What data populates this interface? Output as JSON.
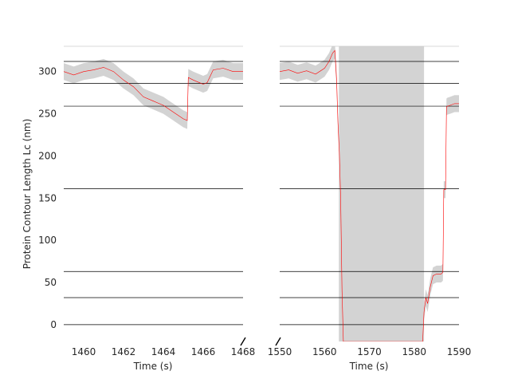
{
  "chart_data": {
    "type": "line",
    "ylabel": "Protein Contour Length Lc (nm)",
    "ylim": [
      -20,
      330
    ],
    "yticks": [
      0,
      50,
      100,
      150,
      200,
      250,
      300
    ],
    "reference_lines": [
      0,
      32,
      63,
      161,
      259,
      286,
      312
    ],
    "colors": {
      "trace": "#ff0000",
      "band": "#d3d3d3",
      "reference": "#000000"
    },
    "broken_axis": true,
    "panels": [
      {
        "xlabel": "Time (s)",
        "xlim": [
          1459,
          1468
        ],
        "xticks": [
          1460,
          1462,
          1464,
          1466,
          1468
        ],
        "band_halfwidth": 10,
        "series": {
          "x": [
            1459.0,
            1459.5,
            1460.0,
            1460.5,
            1461.0,
            1461.5,
            1462.0,
            1462.5,
            1463.0,
            1463.5,
            1464.0,
            1464.5,
            1465.0,
            1465.2,
            1465.25,
            1465.5,
            1466.0,
            1466.2,
            1466.5,
            1467.0,
            1467.5,
            1468.0
          ],
          "y": [
            300,
            296,
            300,
            302,
            305,
            300,
            290,
            282,
            270,
            265,
            260,
            252,
            244,
            242,
            293,
            290,
            285,
            287,
            302,
            304,
            300,
            300
          ]
        }
      },
      {
        "xlabel": "Time (s)",
        "xlim": [
          1550,
          1590
        ],
        "xticks": [
          1550,
          1560,
          1570,
          1580,
          1590
        ],
        "band_halfwidth": 10,
        "series": {
          "x": [
            1550,
            1552,
            1554,
            1556,
            1558,
            1560,
            1561,
            1561.8,
            1562.3,
            1562.7,
            1563.0,
            1563.3,
            1563.6,
            1563.9,
            1564.2,
            1581.9,
            1582.2,
            1582.6,
            1583.0,
            1583.6,
            1584.2,
            1585.0,
            1586.0,
            1586.4,
            1586.6,
            1587.0,
            1587.2,
            1587.4,
            1588.0,
            1589.0,
            1590.0
          ],
          "y": [
            300,
            302,
            298,
            301,
            297,
            304,
            312,
            322,
            325,
            290,
            240,
            205,
            150,
            40,
            -20,
            -20,
            15,
            32,
            25,
            45,
            58,
            60,
            60,
            62,
            160,
            160,
            258,
            259,
            260,
            262,
            262
          ]
        }
      }
    ]
  }
}
